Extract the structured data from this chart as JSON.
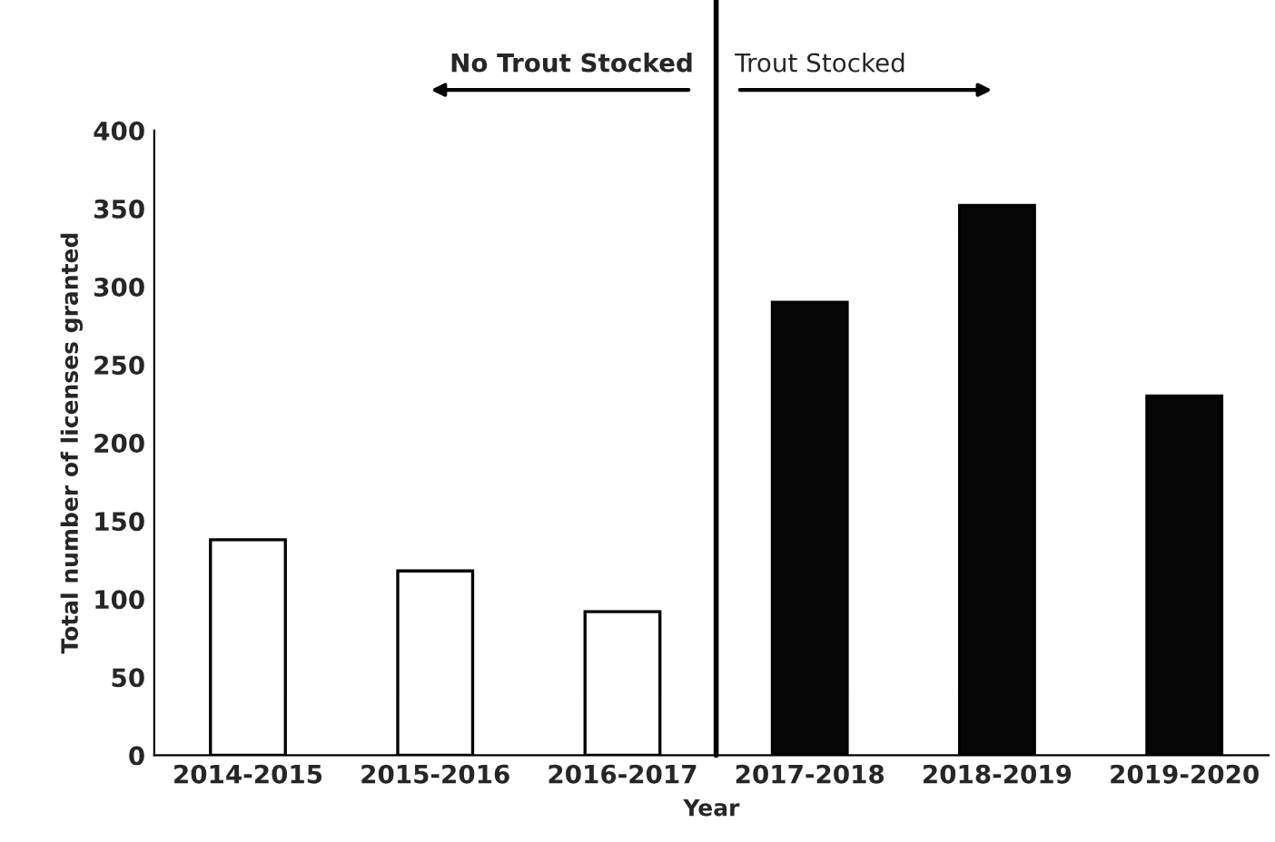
{
  "chart_data": {
    "type": "bar",
    "xlabel": "Year",
    "ylabel": "Total number of licenses granted",
    "categories": [
      "2014-2015",
      "2015-2016",
      "2016-2017",
      "2017-2018",
      "2018-2019",
      "2019-2020"
    ],
    "values": [
      138,
      118,
      92,
      290,
      352,
      230
    ],
    "colors": [
      "#ffffff",
      "#ffffff",
      "#ffffff",
      "#050505",
      "#050505",
      "#050505"
    ],
    "ylim": [
      0,
      400
    ],
    "yticks": [
      0,
      50,
      100,
      150,
      200,
      250,
      300,
      350,
      400
    ],
    "grid": false,
    "legend": false,
    "annotations": [
      "No Trout Stocked",
      "Trout Stocked"
    ]
  }
}
